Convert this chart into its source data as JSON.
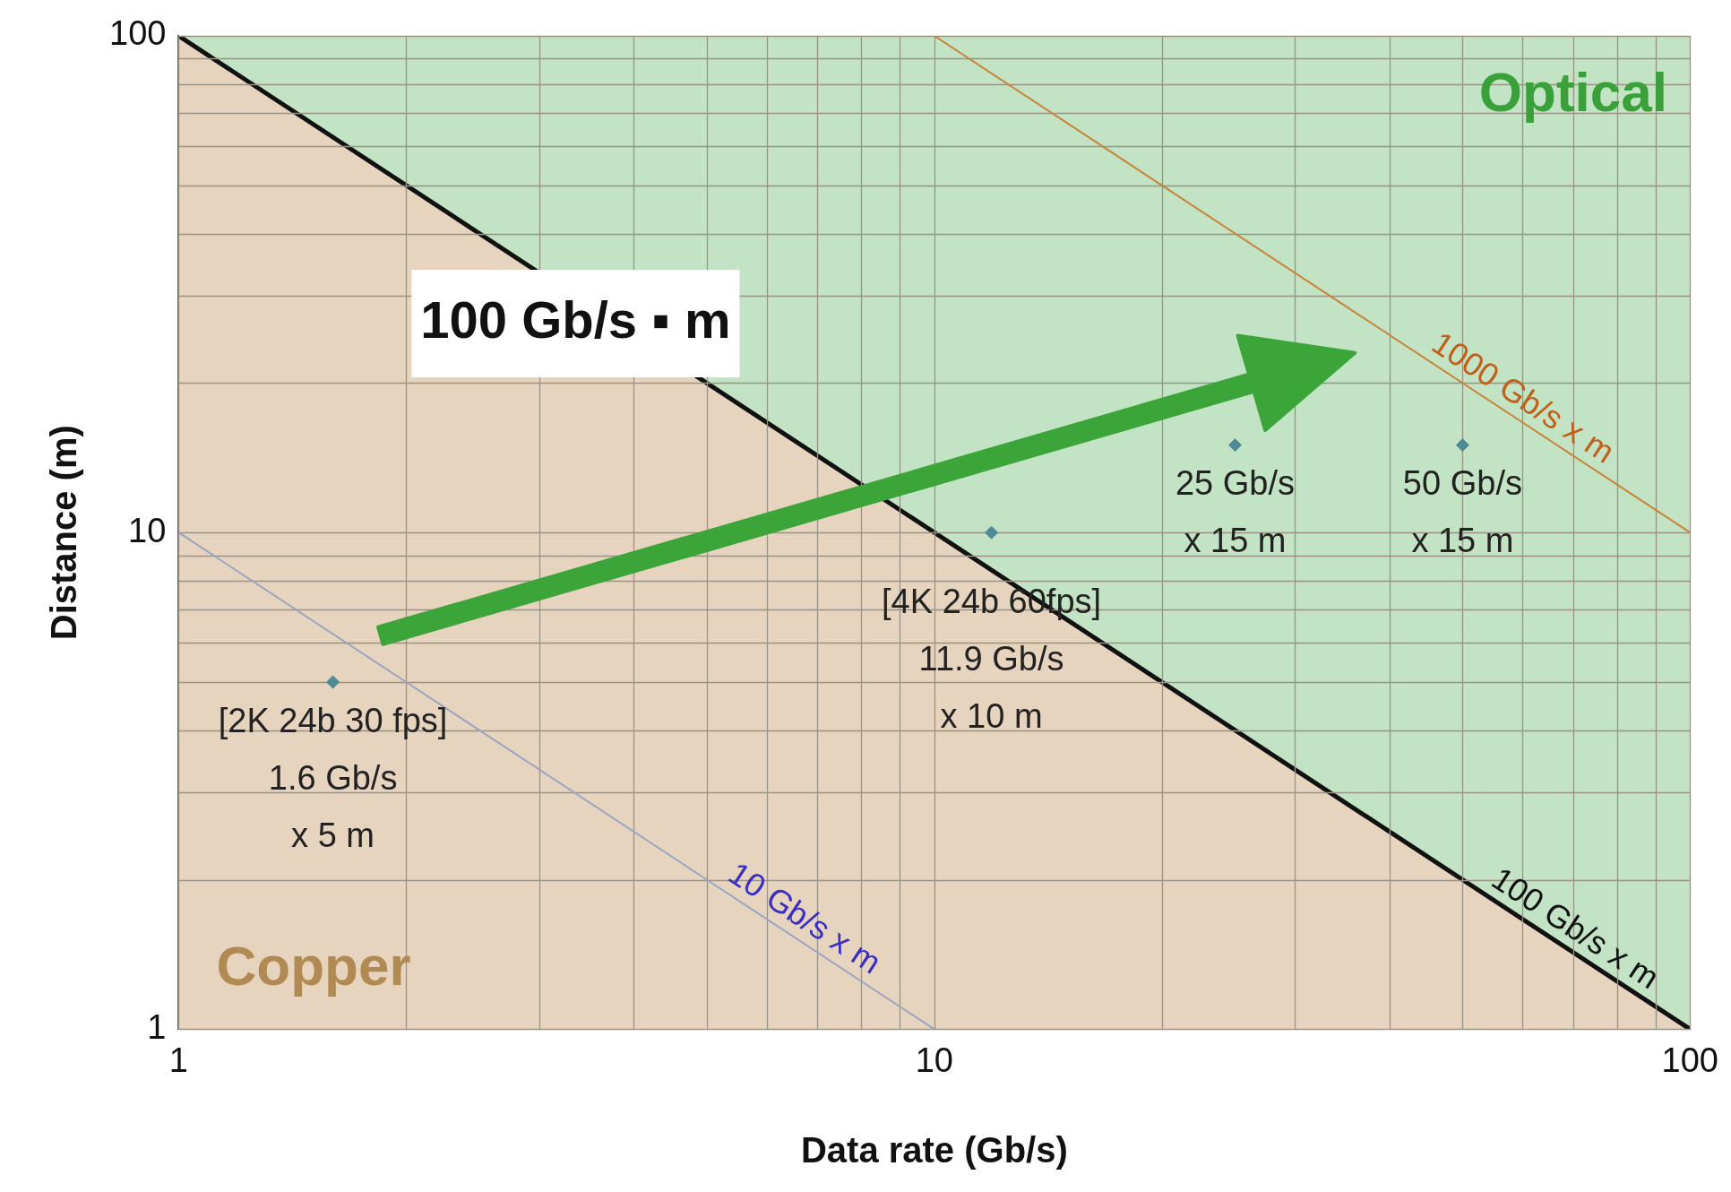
{
  "chart_data": {
    "type": "line",
    "xlabel": "Data rate (Gb/s)",
    "ylabel": "Distance (m)",
    "log": "xy",
    "grid": true,
    "legend": false,
    "xlim": [
      1,
      100
    ],
    "ylim": [
      1,
      100
    ],
    "xticks": [
      1,
      {
        "value": 2,
        "label": null
      },
      {
        "value": 3,
        "label": null
      },
      {
        "value": 4,
        "label": null
      },
      {
        "value": 5,
        "label": null
      },
      {
        "value": 6,
        "label": null
      },
      {
        "value": 7,
        "label": null
      },
      {
        "value": 8,
        "label": null
      },
      {
        "value": 9,
        "label": null
      },
      10,
      {
        "value": 20,
        "label": null
      },
      {
        "value": 30,
        "label": null
      },
      {
        "value": 40,
        "label": null
      },
      {
        "value": 50,
        "label": null
      },
      {
        "value": 60,
        "label": null
      },
      {
        "value": 70,
        "label": null
      },
      {
        "value": 80,
        "label": null
      },
      {
        "value": 90,
        "label": null
      },
      100
    ],
    "yticks": [
      1,
      {
        "value": 2,
        "label": null
      },
      {
        "value": 3,
        "label": null
      },
      {
        "value": 4,
        "label": null
      },
      {
        "value": 5,
        "label": null
      },
      {
        "value": 6,
        "label": null
      },
      {
        "value": 7,
        "label": null
      },
      {
        "value": 8,
        "label": null
      },
      {
        "value": 9,
        "label": null
      },
      10,
      {
        "value": 20,
        "label": null
      },
      {
        "value": 30,
        "label": null
      },
      {
        "value": 40,
        "label": null
      },
      {
        "value": 50,
        "label": null
      },
      {
        "value": 60,
        "label": null
      },
      {
        "value": 70,
        "label": null
      },
      {
        "value": 80,
        "label": null
      },
      {
        "value": 90,
        "label": null
      },
      100
    ],
    "series": [
      {
        "name": "Copper",
        "type": "area",
        "color": "#e6d4bf",
        "x": [
          1,
          100
        ],
        "values": [
          100,
          1
        ]
      },
      {
        "color": "#9aa6bf",
        "x": [
          1,
          10
        ],
        "values": [
          10,
          1
        ]
      },
      {
        "color": "#c8843a",
        "x": [
          10,
          100
        ],
        "values": [
          100,
          10
        ]
      },
      {
        "type": "scatter",
        "color": "#4f8a99",
        "marker": "diamond",
        "x": [
          1.6,
          11.9,
          25,
          50
        ],
        "values": [
          5,
          10,
          15,
          15
        ]
      }
    ],
    "annotations": [
      {
        "text": "[2K 24b 30 fps]\n1.6 Gb/s\nx 5 m",
        "x": 1.6,
        "y": 5
      },
      {
        "text": "[4K 24b 60fps]\n11.9 Gb/s\nx 10 m",
        "x": 11.9,
        "y": 10
      },
      {
        "text": "25 Gb/s\nx 15 m",
        "x": 25,
        "y": 15
      },
      {
        "text": "50 Gb/s\nx 15 m",
        "x": 50,
        "y": 15
      },
      {
        "text": "10 Gb/s x m",
        "x": 6.5,
        "y": 1.54
      },
      {
        "text": "100 Gb/s x m",
        "x": 68,
        "y": 1.47
      },
      {
        "text": "1000 Gb/s x m",
        "x": 58,
        "y": 17.2
      },
      "100 Gb/s ▪ m",
      "Optical"
    ]
  }
}
